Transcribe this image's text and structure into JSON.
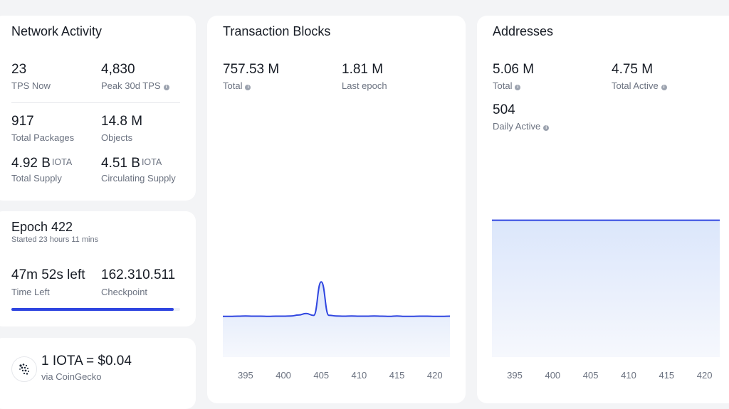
{
  "network": {
    "title": "Network Activity",
    "tps_now": {
      "value": "23",
      "label": "TPS Now"
    },
    "peak_tps": {
      "value": "4,830",
      "label": "Peak 30d TPS"
    },
    "total_packages": {
      "value": "917",
      "label": "Total Packages"
    },
    "objects": {
      "value": "14.8 M",
      "label": "Objects"
    },
    "total_supply": {
      "value": "4.92 B",
      "unit": "IOTA",
      "label": "Total Supply"
    },
    "circulating_supply": {
      "value": "4.51 B",
      "unit": "IOTA",
      "label": "Circulating Supply"
    }
  },
  "epoch": {
    "title": "Epoch 422",
    "started": "Started 23 hours 11 mins",
    "time_left": {
      "value": "47m 52s left",
      "label": "Time Left"
    },
    "checkpoint": {
      "value": "162.310.511",
      "label": "Checkpoint"
    },
    "progress": 0.96
  },
  "price": {
    "text": "1 IOTA = $0.04",
    "source": "via CoinGecko",
    "icon": "iota-logo-icon"
  },
  "transactions": {
    "title": "Transaction Blocks",
    "total": {
      "value": "757.53 M",
      "label": "Total"
    },
    "last_epoch": {
      "value": "1.81 M",
      "label": "Last epoch"
    }
  },
  "addresses": {
    "title": "Addresses",
    "total": {
      "value": "5.06 M",
      "label": "Total"
    },
    "total_active": {
      "value": "4.75 M",
      "label": "Total Active"
    },
    "daily_active": {
      "value": "504",
      "label": "Daily Active"
    }
  },
  "colors": {
    "accent": "#2f45e0",
    "fill_top": "#dbe6fb",
    "card": "#ffffff",
    "bg": "#f3f4f6"
  },
  "chart_data": [
    {
      "type": "area",
      "chart": "transaction-blocks",
      "x_tick_labels": [
        "395",
        "400",
        "405",
        "410",
        "415",
        "420"
      ],
      "x": [
        392,
        393,
        394,
        395,
        396,
        397,
        398,
        399,
        400,
        401,
        402,
        403,
        404,
        405,
        406,
        407,
        408,
        409,
        410,
        411,
        412,
        413,
        414,
        415,
        416,
        417,
        418,
        419,
        420,
        421,
        422
      ],
      "values": [
        1.8,
        1.8,
        1.81,
        1.82,
        1.81,
        1.81,
        1.8,
        1.81,
        1.81,
        1.82,
        1.87,
        1.95,
        1.85,
        3.65,
        1.86,
        1.82,
        1.81,
        1.82,
        1.81,
        1.81,
        1.82,
        1.81,
        1.8,
        1.82,
        1.8,
        1.8,
        1.81,
        1.81,
        1.8,
        1.8,
        1.81
      ],
      "ylim": [
        0,
        8
      ]
    },
    {
      "type": "area",
      "chart": "addresses",
      "x_tick_labels": [
        "395",
        "400",
        "405",
        "410",
        "415",
        "420"
      ],
      "x": [
        392,
        422
      ],
      "values": [
        4.75,
        4.75
      ],
      "ylim": [
        0,
        10
      ]
    }
  ]
}
